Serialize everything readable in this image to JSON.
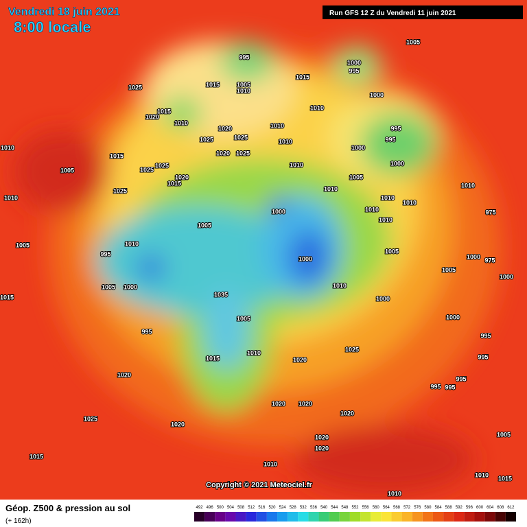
{
  "header": {
    "date": "Vendredi 18 juin 2021",
    "time": "8:00 locale",
    "run": "Run GFS 12 Z du Vendredi 11 juin 2021"
  },
  "copyright": "Copyright © 2021 Meteociel.fr",
  "footer": {
    "title": "Géop. Z500 & pression au sol",
    "lead": "(+ 162h)"
  },
  "scale": {
    "labels": [
      492,
      496,
      500,
      504,
      508,
      512,
      516,
      520,
      524,
      528,
      532,
      536,
      540,
      544,
      548,
      552,
      556,
      560,
      564,
      568,
      572,
      576,
      580,
      584,
      588,
      592,
      596,
      600,
      604,
      608,
      612
    ]
  },
  "pressure_labels": [
    1005,
    995,
    1000,
    995,
    1025,
    1015,
    1005,
    1010,
    1015,
    1000,
    1010,
    1015,
    1020,
    1010,
    1020,
    1010,
    995,
    1025,
    1025,
    1010,
    1000,
    995,
    1010,
    1015,
    1020,
    1025,
    1025,
    1025,
    1000,
    1010,
    1005,
    1020,
    1015,
    1005,
    1010,
    1010,
    1025,
    1010,
    1010,
    1010,
    1000,
    1010,
    975,
    1005,
    1010,
    1010,
    1005,
    995,
    1005,
    1000,
    975,
    1000,
    1005,
    1005,
    1000,
    1035,
    1010,
    1000,
    1000,
    1015,
    1005,
    1000,
    995,
    995,
    1025,
    1010,
    1015,
    1020,
    995,
    1020,
    995,
    995,
    995,
    1020,
    1020,
    1020,
    1025,
    1020,
    1020,
    1020,
    1005,
    1015,
    1010,
    1010,
    1015,
    1010
  ]
}
